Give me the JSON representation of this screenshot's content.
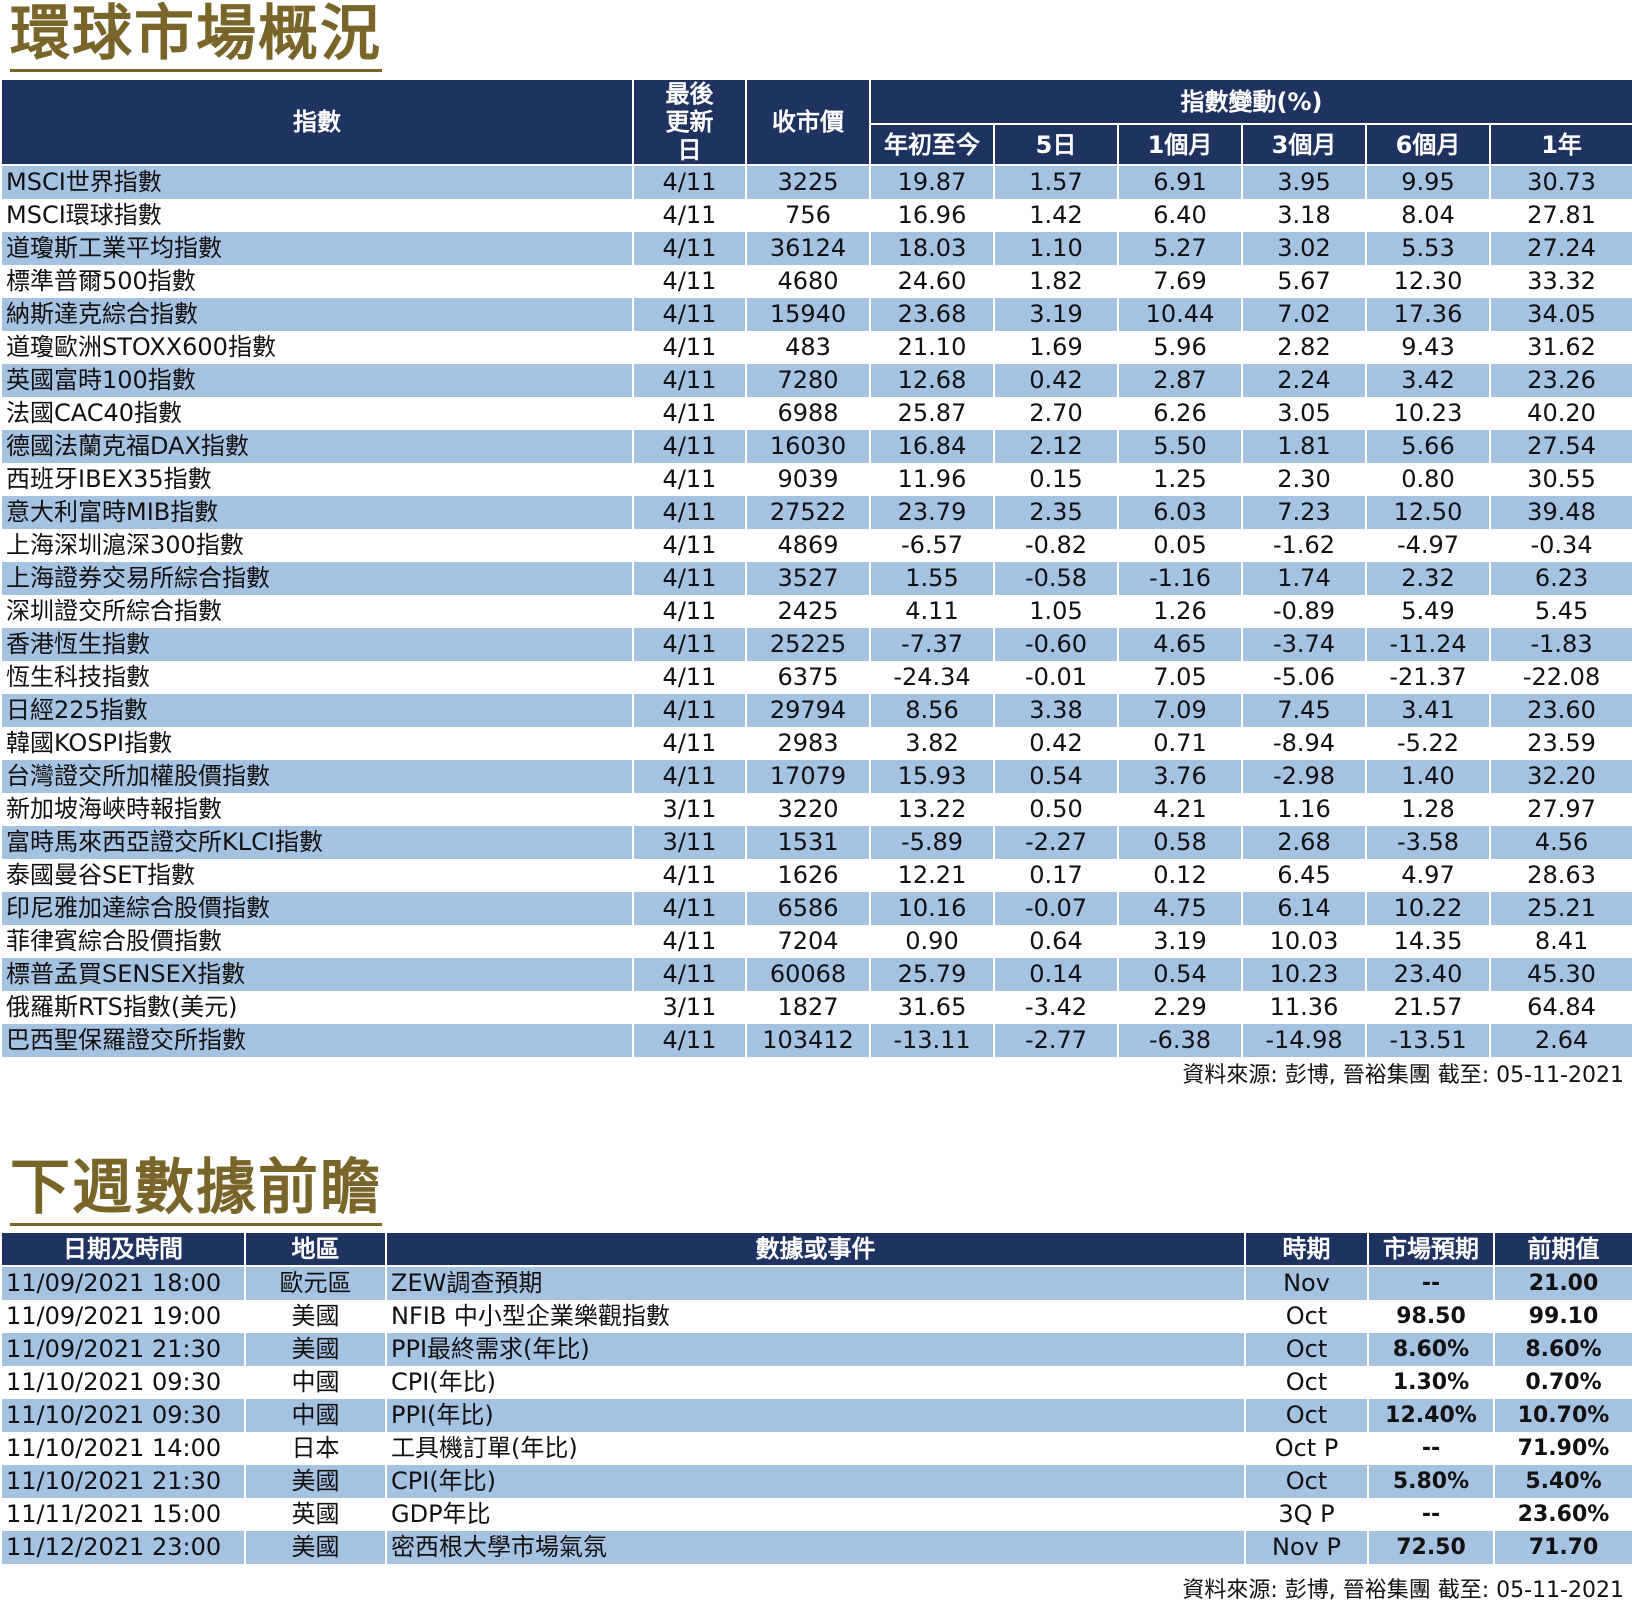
{
  "market": {
    "title": "環球市場概況",
    "headers": {
      "index": "指數",
      "last_update": "最後更新日",
      "close": "收市價",
      "change_group": "指數變動(%)",
      "ytd": "年初至今",
      "d5": "5日",
      "m1": "1個月",
      "m3": "3個月",
      "m6": "6個月",
      "y1": "1年"
    },
    "rows": [
      [
        "MSCI世界指數",
        "4/11",
        "3225",
        "19.87",
        "1.57",
        "6.91",
        "3.95",
        "9.95",
        "30.73"
      ],
      [
        "MSCI環球指數",
        "4/11",
        "756",
        "16.96",
        "1.42",
        "6.40",
        "3.18",
        "8.04",
        "27.81"
      ],
      [
        "道瓊斯工業平均指數",
        "4/11",
        "36124",
        "18.03",
        "1.10",
        "5.27",
        "3.02",
        "5.53",
        "27.24"
      ],
      [
        "標準普爾500指數",
        "4/11",
        "4680",
        "24.60",
        "1.82",
        "7.69",
        "5.67",
        "12.30",
        "33.32"
      ],
      [
        "納斯達克綜合指數",
        "4/11",
        "15940",
        "23.68",
        "3.19",
        "10.44",
        "7.02",
        "17.36",
        "34.05"
      ],
      [
        "道瓊歐洲STOXX600指數",
        "4/11",
        "483",
        "21.10",
        "1.69",
        "5.96",
        "2.82",
        "9.43",
        "31.62"
      ],
      [
        "英國富時100指數",
        "4/11",
        "7280",
        "12.68",
        "0.42",
        "2.87",
        "2.24",
        "3.42",
        "23.26"
      ],
      [
        "法國CAC40指數",
        "4/11",
        "6988",
        "25.87",
        "2.70",
        "6.26",
        "3.05",
        "10.23",
        "40.20"
      ],
      [
        "德國法蘭克福DAX指數",
        "4/11",
        "16030",
        "16.84",
        "2.12",
        "5.50",
        "1.81",
        "5.66",
        "27.54"
      ],
      [
        "西班牙IBEX35指數",
        "4/11",
        "9039",
        "11.96",
        "0.15",
        "1.25",
        "2.30",
        "0.80",
        "30.55"
      ],
      [
        "意大利富時MIB指數",
        "4/11",
        "27522",
        "23.79",
        "2.35",
        "6.03",
        "7.23",
        "12.50",
        "39.48"
      ],
      [
        "上海深圳滬深300指數",
        "4/11",
        "4869",
        "-6.57",
        "-0.82",
        "0.05",
        "-1.62",
        "-4.97",
        "-0.34"
      ],
      [
        "上海證券交易所綜合指數",
        "4/11",
        "3527",
        "1.55",
        "-0.58",
        "-1.16",
        "1.74",
        "2.32",
        "6.23"
      ],
      [
        "深圳證交所綜合指數",
        "4/11",
        "2425",
        "4.11",
        "1.05",
        "1.26",
        "-0.89",
        "5.49",
        "5.45"
      ],
      [
        "香港恆生指數",
        "4/11",
        "25225",
        "-7.37",
        "-0.60",
        "4.65",
        "-3.74",
        "-11.24",
        "-1.83"
      ],
      [
        "恆生科技指數",
        "4/11",
        "6375",
        "-24.34",
        "-0.01",
        "7.05",
        "-5.06",
        "-21.37",
        "-22.08"
      ],
      [
        "日經225指數",
        "4/11",
        "29794",
        "8.56",
        "3.38",
        "7.09",
        "7.45",
        "3.41",
        "23.60"
      ],
      [
        "韓國KOSPI指數",
        "4/11",
        "2983",
        "3.82",
        "0.42",
        "0.71",
        "-8.94",
        "-5.22",
        "23.59"
      ],
      [
        "台灣證交所加權股價指數",
        "4/11",
        "17079",
        "15.93",
        "0.54",
        "3.76",
        "-2.98",
        "1.40",
        "32.20"
      ],
      [
        "新加坡海峽時報指數",
        "3/11",
        "3220",
        "13.22",
        "0.50",
        "4.21",
        "1.16",
        "1.28",
        "27.97"
      ],
      [
        "富時馬來西亞證交所KLCI指數",
        "3/11",
        "1531",
        "-5.89",
        "-2.27",
        "0.58",
        "2.68",
        "-3.58",
        "4.56"
      ],
      [
        "泰國曼谷SET指數",
        "4/11",
        "1626",
        "12.21",
        "0.17",
        "0.12",
        "6.45",
        "4.97",
        "28.63"
      ],
      [
        "印尼雅加達綜合股價指數",
        "4/11",
        "6586",
        "10.16",
        "-0.07",
        "4.75",
        "6.14",
        "10.22",
        "25.21"
      ],
      [
        "菲律賓綜合股價指數",
        "4/11",
        "7204",
        "0.90",
        "0.64",
        "3.19",
        "10.03",
        "14.35",
        "8.41"
      ],
      [
        "標普孟買SENSEX指數",
        "4/11",
        "60068",
        "25.79",
        "0.14",
        "0.54",
        "10.23",
        "23.40",
        "45.30"
      ],
      [
        "俄羅斯RTS指數(美元)",
        "3/11",
        "1827",
        "31.65",
        "-3.42",
        "2.29",
        "11.36",
        "21.57",
        "64.84"
      ],
      [
        "巴西聖保羅證交所指數",
        "4/11",
        "103412",
        "-13.11",
        "-2.77",
        "-6.38",
        "-14.98",
        "-13.51",
        "2.64"
      ]
    ],
    "source": "資料來源: 彭博, 晉裕集團 截至: 05-11-2021"
  },
  "calendar": {
    "title": "下週數據前瞻",
    "headers": {
      "datetime": "日期及時間",
      "region": "地區",
      "event": "數據或事件",
      "period": "時期",
      "forecast": "市場預期",
      "previous": "前期值"
    },
    "rows": [
      [
        "11/09/2021 18:00",
        "歐元區",
        "ZEW調查預期",
        "Nov",
        "--",
        "21.00"
      ],
      [
        "11/09/2021 19:00",
        "美國",
        "NFIB 中小型企業樂觀指數",
        "Oct",
        "98.50",
        "99.10"
      ],
      [
        "11/09/2021 21:30",
        "美國",
        "PPI最終需求(年比)",
        "Oct",
        "8.60%",
        "8.60%"
      ],
      [
        "11/10/2021 09:30",
        "中國",
        "CPI(年比)",
        "Oct",
        "1.30%",
        "0.70%"
      ],
      [
        "11/10/2021 09:30",
        "中國",
        "PPI(年比)",
        "Oct",
        "12.40%",
        "10.70%"
      ],
      [
        "11/10/2021 14:00",
        "日本",
        "工具機訂單(年比)",
        "Oct P",
        "--",
        "71.90%"
      ],
      [
        "11/10/2021 21:30",
        "美國",
        "CPI(年比)",
        "Oct",
        "5.80%",
        "5.40%"
      ],
      [
        "11/11/2021 15:00",
        "英國",
        "GDP年比",
        "3Q P",
        "--",
        "23.60%"
      ],
      [
        "11/12/2021 23:00",
        "美國",
        "密西根大學市場氣氛",
        "Nov P",
        "72.50",
        "71.70"
      ]
    ],
    "source": "資料來源: 彭博, 晉裕集團 截至: 05-11-2021"
  }
}
